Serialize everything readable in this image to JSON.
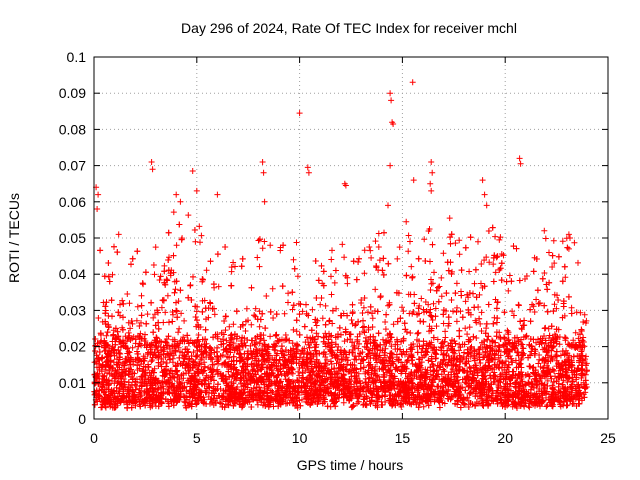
{
  "chart_data": {
    "type": "scatter",
    "title": "Day 296 of 2024, Rate Of TEC Index for receiver mchl",
    "xlabel": "GPS time / hours",
    "ylabel": "ROTI / TECUs",
    "xlim": [
      0,
      25
    ],
    "ylim": [
      0,
      0.1
    ],
    "xticks": [
      0,
      5,
      10,
      15,
      20,
      25
    ],
    "xtick_labels": [
      "0",
      "5",
      "10",
      "15",
      "20",
      "25"
    ],
    "yticks": [
      0,
      0.01,
      0.02,
      0.03,
      0.04,
      0.05,
      0.06,
      0.07,
      0.08,
      0.09,
      0.1
    ],
    "ytick_labels": [
      "0",
      "0.01",
      "0.02",
      "0.03",
      "0.04",
      "0.05",
      "0.06",
      "0.07",
      "0.08",
      "0.09",
      "0.1"
    ],
    "grid": true,
    "marker": "plus",
    "color": "#ff0000",
    "series": [
      {
        "name": "ROTI",
        "band_profile": {
          "hours": [
            0,
            1,
            2,
            3,
            4,
            5,
            6,
            7,
            8,
            9,
            10,
            11,
            12,
            13,
            14,
            15,
            16,
            17,
            18,
            19,
            20,
            21,
            22,
            23,
            24
          ],
          "typical_min": [
            0.005,
            0.004,
            0.004,
            0.004,
            0.005,
            0.005,
            0.005,
            0.005,
            0.005,
            0.005,
            0.005,
            0.005,
            0.005,
            0.005,
            0.005,
            0.005,
            0.005,
            0.005,
            0.005,
            0.005,
            0.005,
            0.004,
            0.004,
            0.005,
            0.006
          ],
          "typical_max": [
            0.03,
            0.03,
            0.028,
            0.03,
            0.04,
            0.038,
            0.03,
            0.026,
            0.03,
            0.03,
            0.032,
            0.028,
            0.03,
            0.032,
            0.038,
            0.035,
            0.036,
            0.04,
            0.042,
            0.045,
            0.036,
            0.03,
            0.034,
            0.035,
            0.03
          ],
          "upper_envelope": [
            0.05,
            0.05,
            0.048,
            0.05,
            0.06,
            0.055,
            0.05,
            0.045,
            0.05,
            0.05,
            0.05,
            0.045,
            0.05,
            0.05,
            0.055,
            0.055,
            0.055,
            0.05,
            0.055,
            0.055,
            0.05,
            0.045,
            0.05,
            0.05,
            0.05
          ]
        },
        "highlights": [
          {
            "x": 0.1,
            "y": 0.064
          },
          {
            "x": 0.15,
            "y": 0.058
          },
          {
            "x": 0.2,
            "y": 0.062
          },
          {
            "x": 2.8,
            "y": 0.071
          },
          {
            "x": 2.85,
            "y": 0.069
          },
          {
            "x": 4.0,
            "y": 0.062
          },
          {
            "x": 4.2,
            "y": 0.06
          },
          {
            "x": 4.8,
            "y": 0.0685
          },
          {
            "x": 5.0,
            "y": 0.063
          },
          {
            "x": 6.0,
            "y": 0.062
          },
          {
            "x": 8.2,
            "y": 0.071
          },
          {
            "x": 8.25,
            "y": 0.068
          },
          {
            "x": 8.3,
            "y": 0.06
          },
          {
            "x": 10.0,
            "y": 0.0845
          },
          {
            "x": 10.4,
            "y": 0.0695
          },
          {
            "x": 10.45,
            "y": 0.068
          },
          {
            "x": 12.2,
            "y": 0.065
          },
          {
            "x": 12.25,
            "y": 0.0645
          },
          {
            "x": 14.4,
            "y": 0.09
          },
          {
            "x": 14.45,
            "y": 0.088
          },
          {
            "x": 14.5,
            "y": 0.082
          },
          {
            "x": 14.55,
            "y": 0.0815
          },
          {
            "x": 14.4,
            "y": 0.07
          },
          {
            "x": 14.3,
            "y": 0.059
          },
          {
            "x": 15.5,
            "y": 0.093
          },
          {
            "x": 15.55,
            "y": 0.066
          },
          {
            "x": 16.4,
            "y": 0.071
          },
          {
            "x": 16.45,
            "y": 0.068
          },
          {
            "x": 16.35,
            "y": 0.065
          },
          {
            "x": 16.4,
            "y": 0.063
          },
          {
            "x": 18.9,
            "y": 0.066
          },
          {
            "x": 19.0,
            "y": 0.062
          },
          {
            "x": 19.1,
            "y": 0.059
          },
          {
            "x": 20.7,
            "y": 0.072
          },
          {
            "x": 20.75,
            "y": 0.0705
          },
          {
            "x": 21.9,
            "y": 0.052
          },
          {
            "x": 23.1,
            "y": 0.051
          },
          {
            "x": 23.15,
            "y": 0.05
          },
          {
            "x": 23.1,
            "y": 0.047
          },
          {
            "x": 17.3,
            "y": 0.0555
          },
          {
            "x": 3.0,
            "y": 0.0475
          },
          {
            "x": 1.2,
            "y": 0.051
          }
        ]
      }
    ]
  }
}
